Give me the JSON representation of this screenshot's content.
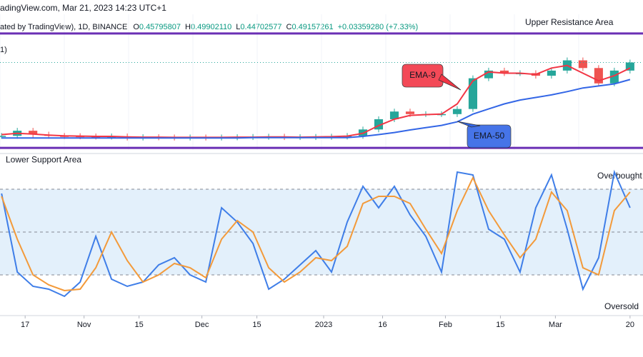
{
  "header": {
    "source": "adingView.com, Mar 21, 2023 14:23 UTC+1",
    "symbol": "ated by TradingView), 1D, BINANCE",
    "ohlc": [
      {
        "label": "O",
        "value": "0.45795807"
      },
      {
        "label": "H",
        "value": "0.49902110"
      },
      {
        "label": "L",
        "value": "0.44702577"
      },
      {
        "label": "C",
        "value": "0.49157261"
      }
    ],
    "change": "+0.03359280 (+7.33%)",
    "indicator_label": "1)"
  },
  "chart_data": [
    {
      "type": "candlestick",
      "up_color": "#26a69a",
      "down_color": "#ef5350",
      "last_price_color": "#26a69a",
      "x": [
        0,
        4,
        8,
        12,
        16,
        20,
        24,
        28,
        32,
        36,
        40,
        44,
        48,
        52,
        56,
        60,
        64,
        68,
        72,
        76,
        80,
        84,
        88,
        92,
        96,
        100,
        104,
        108,
        112,
        116,
        120,
        124,
        128,
        132,
        136,
        140,
        144,
        148,
        152,
        156,
        160
      ],
      "xlim": [
        -0.4,
        163.3
      ],
      "ylim": [
        0.15,
        0.68
      ],
      "values": [
        0.205,
        0.225,
        0.21,
        0.205,
        0.204,
        0.203,
        0.202,
        0.203,
        0.198,
        0.2,
        0.199,
        0.198,
        0.199,
        0.198,
        0.199,
        0.2,
        0.201,
        0.202,
        0.2,
        0.2,
        0.201,
        0.202,
        0.205,
        0.23,
        0.27,
        0.3,
        0.29,
        0.29,
        0.29,
        0.31,
        0.43,
        0.46,
        0.45,
        0.45,
        0.44,
        0.46,
        0.5,
        0.47,
        0.41,
        0.46,
        0.4916
      ],
      "series": [
        {
          "name": "EMA-9",
          "color": "#f23645",
          "values": [
            0.21,
            0.215,
            0.212,
            0.208,
            0.205,
            0.204,
            0.203,
            0.203,
            0.201,
            0.2,
            0.2,
            0.199,
            0.199,
            0.199,
            0.199,
            0.2,
            0.2,
            0.201,
            0.201,
            0.2,
            0.201,
            0.202,
            0.204,
            0.215,
            0.245,
            0.27,
            0.285,
            0.288,
            0.29,
            0.33,
            0.42,
            0.455,
            0.45,
            0.45,
            0.445,
            0.47,
            0.48,
            0.45,
            0.42,
            0.44,
            0.47
          ]
        },
        {
          "name": "EMA-50",
          "color": "#3366e6",
          "values": [
            0.197,
            0.197,
            0.197,
            0.197,
            0.197,
            0.197,
            0.197,
            0.197,
            0.197,
            0.197,
            0.197,
            0.197,
            0.197,
            0.197,
            0.197,
            0.197,
            0.198,
            0.198,
            0.198,
            0.198,
            0.198,
            0.198,
            0.198,
            0.203,
            0.21,
            0.218,
            0.228,
            0.237,
            0.246,
            0.26,
            0.29,
            0.31,
            0.33,
            0.345,
            0.355,
            0.365,
            0.378,
            0.392,
            0.4,
            0.408,
            0.425
          ]
        }
      ],
      "levels": [
        {
          "label": "Upper Resistance Area",
          "value": 0.605,
          "color": "#6a2fb5"
        },
        {
          "label": "Lower Support Area",
          "value": 0.158,
          "color": "#6a2fb5"
        }
      ]
    },
    {
      "type": "line",
      "x": [
        0,
        4,
        8,
        12,
        16,
        20,
        24,
        28,
        32,
        36,
        40,
        44,
        48,
        52,
        56,
        60,
        64,
        68,
        72,
        76,
        80,
        84,
        88,
        92,
        96,
        100,
        104,
        108,
        112,
        116,
        120,
        124,
        128,
        132,
        136,
        140,
        144,
        148,
        152,
        156,
        160
      ],
      "xlim": [
        -0.4,
        163.3
      ],
      "ylim": [
        -5,
        100
      ],
      "xticks": [
        {
          "value": 6,
          "label": "17"
        },
        {
          "value": 21,
          "label": "Nov"
        },
        {
          "value": 35,
          "label": "15"
        },
        {
          "value": 51,
          "label": "Dec"
        },
        {
          "value": 65,
          "label": "15"
        },
        {
          "value": 82,
          "label": "2023"
        },
        {
          "value": 97,
          "label": "16"
        },
        {
          "value": 113,
          "label": "Feb"
        },
        {
          "value": 127,
          "label": "15"
        },
        {
          "value": 141,
          "label": "Mar"
        },
        {
          "value": 160,
          "label": "20"
        }
      ],
      "series": [
        {
          "color": "#3f7ee8",
          "values": [
            77,
            22,
            12,
            10,
            5,
            15,
            47,
            17,
            12,
            15,
            27,
            32,
            20,
            15,
            67,
            57,
            42,
            10,
            17,
            27,
            37,
            22,
            57,
            82,
            67,
            82,
            62,
            47,
            22,
            92,
            90,
            52,
            45,
            22,
            67,
            90,
            52,
            10,
            32,
            92,
            67
          ]
        },
        {
          "color": "#f39a3a",
          "values": [
            75,
            45,
            20,
            13,
            9,
            10,
            25,
            50,
            30,
            15,
            20,
            28,
            25,
            18,
            45,
            58,
            50,
            25,
            15,
            22,
            32,
            30,
            40,
            70,
            75,
            75,
            70,
            52,
            35,
            65,
            88,
            65,
            48,
            32,
            45,
            78,
            65,
            25,
            20,
            65,
            78
          ]
        }
      ],
      "levels": [
        {
          "label": "Overbought",
          "value": 80
        },
        {
          "value": 50
        },
        {
          "label": "Oversold",
          "value": 20
        }
      ],
      "band_color": "#e3f0fb"
    }
  ]
}
